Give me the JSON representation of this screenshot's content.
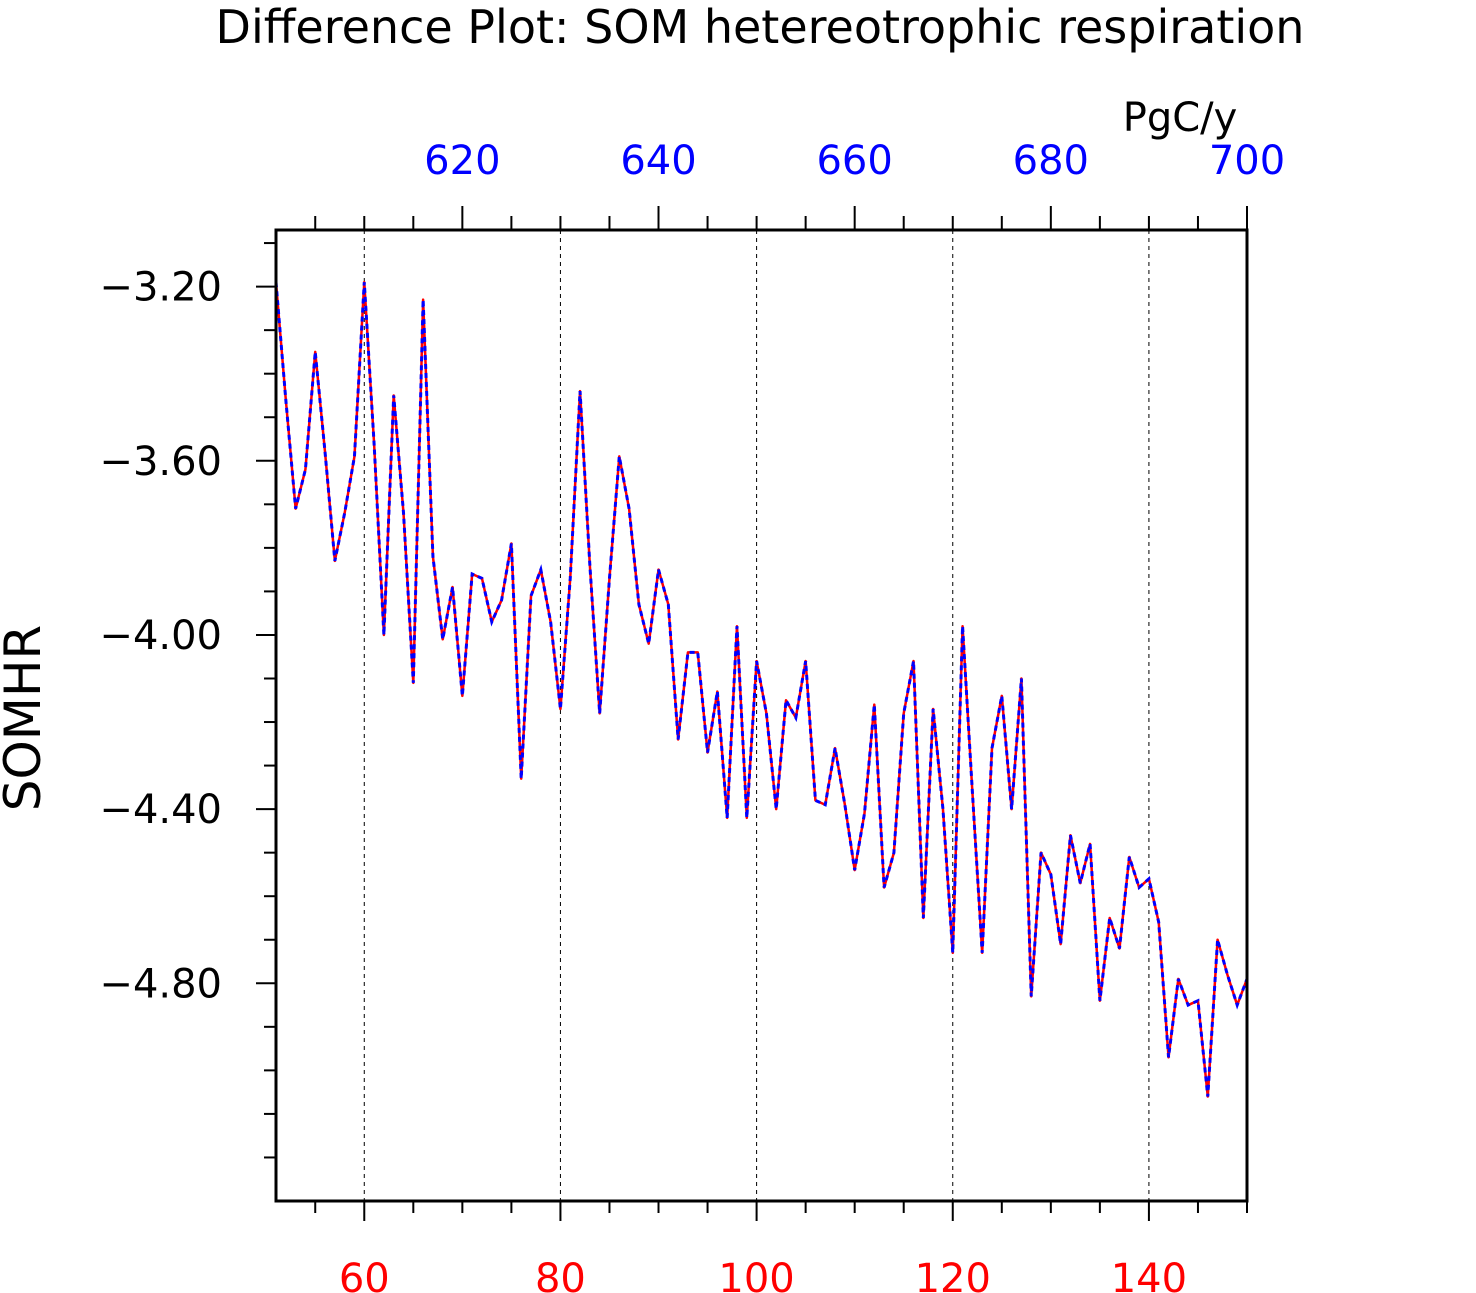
{
  "chart_data": {
    "type": "line",
    "title": "Difference Plot: SOM hetereotrophic respiration",
    "ylabel": "SOMHR",
    "units_label": "PgC/y",
    "xlim_bottom": [
      51,
      150
    ],
    "xlim_top": [
      601,
      700
    ],
    "ylim": [
      -5.3,
      -3.07
    ],
    "bottom_ticks": [
      60,
      80,
      100,
      120,
      140
    ],
    "bottom_tick_labels": [
      "60",
      "80",
      "100",
      "120",
      "140"
    ],
    "top_ticks": [
      620,
      640,
      660,
      680,
      700
    ],
    "top_tick_labels": [
      "620",
      "640",
      "660",
      "680",
      "700"
    ],
    "y_ticks": [
      -3.2,
      -3.6,
      -4.0,
      -4.4,
      -4.8
    ],
    "y_tick_labels": [
      "−3.20",
      "−3.60",
      "−4.00",
      "−4.40",
      "−4.80"
    ],
    "grid": "vertical-dashed",
    "colors": {
      "series_a": "#ff0000",
      "series_b": "#0000ff",
      "bottom_axis": "#ff0000",
      "top_axis": "#0000ff",
      "axis": "#000000"
    },
    "series": [
      {
        "x": [
          51,
          52,
          53,
          54,
          55,
          56,
          57,
          58,
          59,
          60,
          61,
          62,
          63,
          64,
          65,
          66,
          67,
          68,
          69,
          70,
          71,
          72,
          73,
          74,
          75,
          76,
          77,
          78,
          79,
          80,
          81,
          82,
          83,
          84,
          85,
          86,
          87,
          88,
          89,
          90,
          91,
          92,
          93,
          94,
          95,
          96,
          97,
          98,
          99,
          100,
          101,
          102,
          103,
          104,
          105,
          106,
          107,
          108,
          109,
          110,
          111,
          112,
          113,
          114,
          115,
          116,
          117,
          118,
          119,
          120,
          121,
          122,
          123,
          124,
          125,
          126,
          127,
          128,
          129,
          130,
          131,
          132,
          133,
          134,
          135,
          136,
          137,
          138,
          139,
          140,
          141,
          142,
          143,
          144,
          145,
          146,
          147,
          148,
          149,
          150
        ],
        "values": [
          -3.19,
          -3.46,
          -3.71,
          -3.62,
          -3.35,
          -3.58,
          -3.83,
          -3.72,
          -3.59,
          -3.19,
          -3.56,
          -4.0,
          -3.45,
          -3.72,
          -4.11,
          -3.23,
          -3.82,
          -4.01,
          -3.89,
          -4.14,
          -3.86,
          -3.87,
          -3.97,
          -3.92,
          -3.79,
          -4.33,
          -3.91,
          -3.85,
          -3.97,
          -4.17,
          -3.87,
          -3.44,
          -3.84,
          -4.18,
          -3.87,
          -3.59,
          -3.71,
          -3.93,
          -4.02,
          -3.85,
          -3.93,
          -4.24,
          -4.04,
          -4.04,
          -4.27,
          -4.13,
          -4.42,
          -3.98,
          -4.42,
          -4.06,
          -4.18,
          -4.4,
          -4.15,
          -4.19,
          -4.06,
          -4.38,
          -4.39,
          -4.26,
          -4.39,
          -4.54,
          -4.41,
          -4.16,
          -4.58,
          -4.5,
          -4.18,
          -4.06,
          -4.65,
          -4.17,
          -4.4,
          -4.73,
          -3.98,
          -4.36,
          -4.73,
          -4.26,
          -4.14,
          -4.4,
          -4.1,
          -4.83,
          -4.5,
          -4.55,
          -4.71,
          -4.46,
          -4.57,
          -4.48,
          -4.84,
          -4.65,
          -4.72,
          -4.51,
          -4.58,
          -4.56,
          -4.66,
          -4.97,
          -4.79,
          -4.85,
          -4.84,
          -5.06,
          -4.7,
          -4.78,
          -4.85,
          -4.79
        ]
      },
      {
        "x": [
          601,
          602,
          603,
          604,
          605,
          606,
          607,
          608,
          609,
          610,
          611,
          612,
          613,
          614,
          615,
          616,
          617,
          618,
          619,
          620,
          621,
          622,
          623,
          624,
          625,
          626,
          627,
          628,
          629,
          630,
          631,
          632,
          633,
          634,
          635,
          636,
          637,
          638,
          639,
          640,
          641,
          642,
          643,
          644,
          645,
          646,
          647,
          648,
          649,
          650,
          651,
          652,
          653,
          654,
          655,
          656,
          657,
          658,
          659,
          660,
          661,
          662,
          663,
          664,
          665,
          666,
          667,
          668,
          669,
          670,
          671,
          672,
          673,
          674,
          675,
          676,
          677,
          678,
          679,
          680,
          681,
          682,
          683,
          684,
          685,
          686,
          687,
          688,
          689,
          690,
          691,
          692,
          693,
          694,
          695,
          696,
          697,
          698,
          699,
          700
        ],
        "values": [
          -3.19,
          -3.46,
          -3.71,
          -3.62,
          -3.35,
          -3.58,
          -3.83,
          -3.72,
          -3.59,
          -3.19,
          -3.56,
          -4.0,
          -3.45,
          -3.72,
          -4.11,
          -3.23,
          -3.82,
          -4.01,
          -3.89,
          -4.14,
          -3.86,
          -3.87,
          -3.97,
          -3.92,
          -3.79,
          -4.33,
          -3.91,
          -3.85,
          -3.97,
          -4.17,
          -3.87,
          -3.44,
          -3.84,
          -4.18,
          -3.87,
          -3.59,
          -3.71,
          -3.93,
          -4.02,
          -3.85,
          -3.93,
          -4.24,
          -4.04,
          -4.04,
          -4.27,
          -4.13,
          -4.42,
          -3.98,
          -4.42,
          -4.06,
          -4.18,
          -4.4,
          -4.15,
          -4.19,
          -4.06,
          -4.38,
          -4.39,
          -4.26,
          -4.39,
          -4.54,
          -4.41,
          -4.16,
          -4.58,
          -4.5,
          -4.18,
          -4.06,
          -4.65,
          -4.17,
          -4.4,
          -4.73,
          -3.98,
          -4.36,
          -4.73,
          -4.26,
          -4.14,
          -4.4,
          -4.1,
          -4.83,
          -4.5,
          -4.55,
          -4.71,
          -4.46,
          -4.57,
          -4.48,
          -4.84,
          -4.65,
          -4.72,
          -4.51,
          -4.58,
          -4.56,
          -4.66,
          -4.97,
          -4.79,
          -4.85,
          -4.84,
          -5.06,
          -4.7,
          -4.78,
          -4.85,
          -4.79
        ]
      }
    ]
  }
}
